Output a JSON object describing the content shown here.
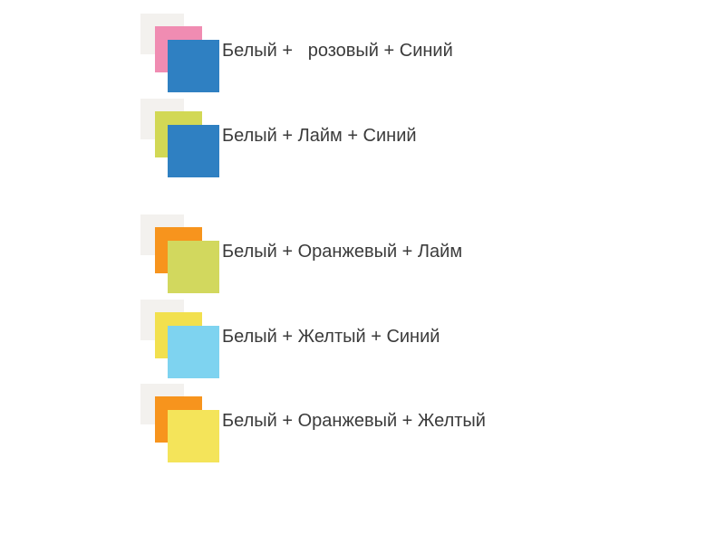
{
  "page": {
    "background": "#ffffff",
    "text_color": "#3b3b3b"
  },
  "legend_rows": [
    {
      "label": "Белый +   розовый + Синий",
      "colors": {
        "back": "#f3f1ee",
        "middle": "#f08cb2",
        "front": "#2f80c2"
      },
      "color_names": {
        "back": "Белый",
        "middle": "розовый",
        "front": "Синий"
      }
    },
    {
      "label": "Белый + Лайм + Синий",
      "colors": {
        "back": "#f3f1ee",
        "middle": "#d2d855",
        "front": "#2f80c2"
      },
      "color_names": {
        "back": "Белый",
        "middle": "Лайм",
        "front": "Синий"
      }
    },
    {
      "label": "Белый + Оранжевый + Лайм",
      "colors": {
        "back": "#f3f1ee",
        "middle": "#f7941d",
        "front": "#d2d85e"
      },
      "color_names": {
        "back": "Белый",
        "middle": "Оранжевый",
        "front": "Лайм"
      }
    },
    {
      "label": "Белый + Желтый + Синий",
      "colors": {
        "back": "#f3f1ee",
        "middle": "#f2e04e",
        "front": "#7ed3f0"
      },
      "color_names": {
        "back": "Белый",
        "middle": "Желтый",
        "front": "Синий"
      }
    },
    {
      "label": "Белый + Оранжевый + Желтый",
      "colors": {
        "back": "#f3f1ee",
        "middle": "#f7941d",
        "front": "#f4e45a"
      },
      "color_names": {
        "back": "Белый",
        "middle": "Оранжевый",
        "front": "Желтый"
      }
    }
  ]
}
